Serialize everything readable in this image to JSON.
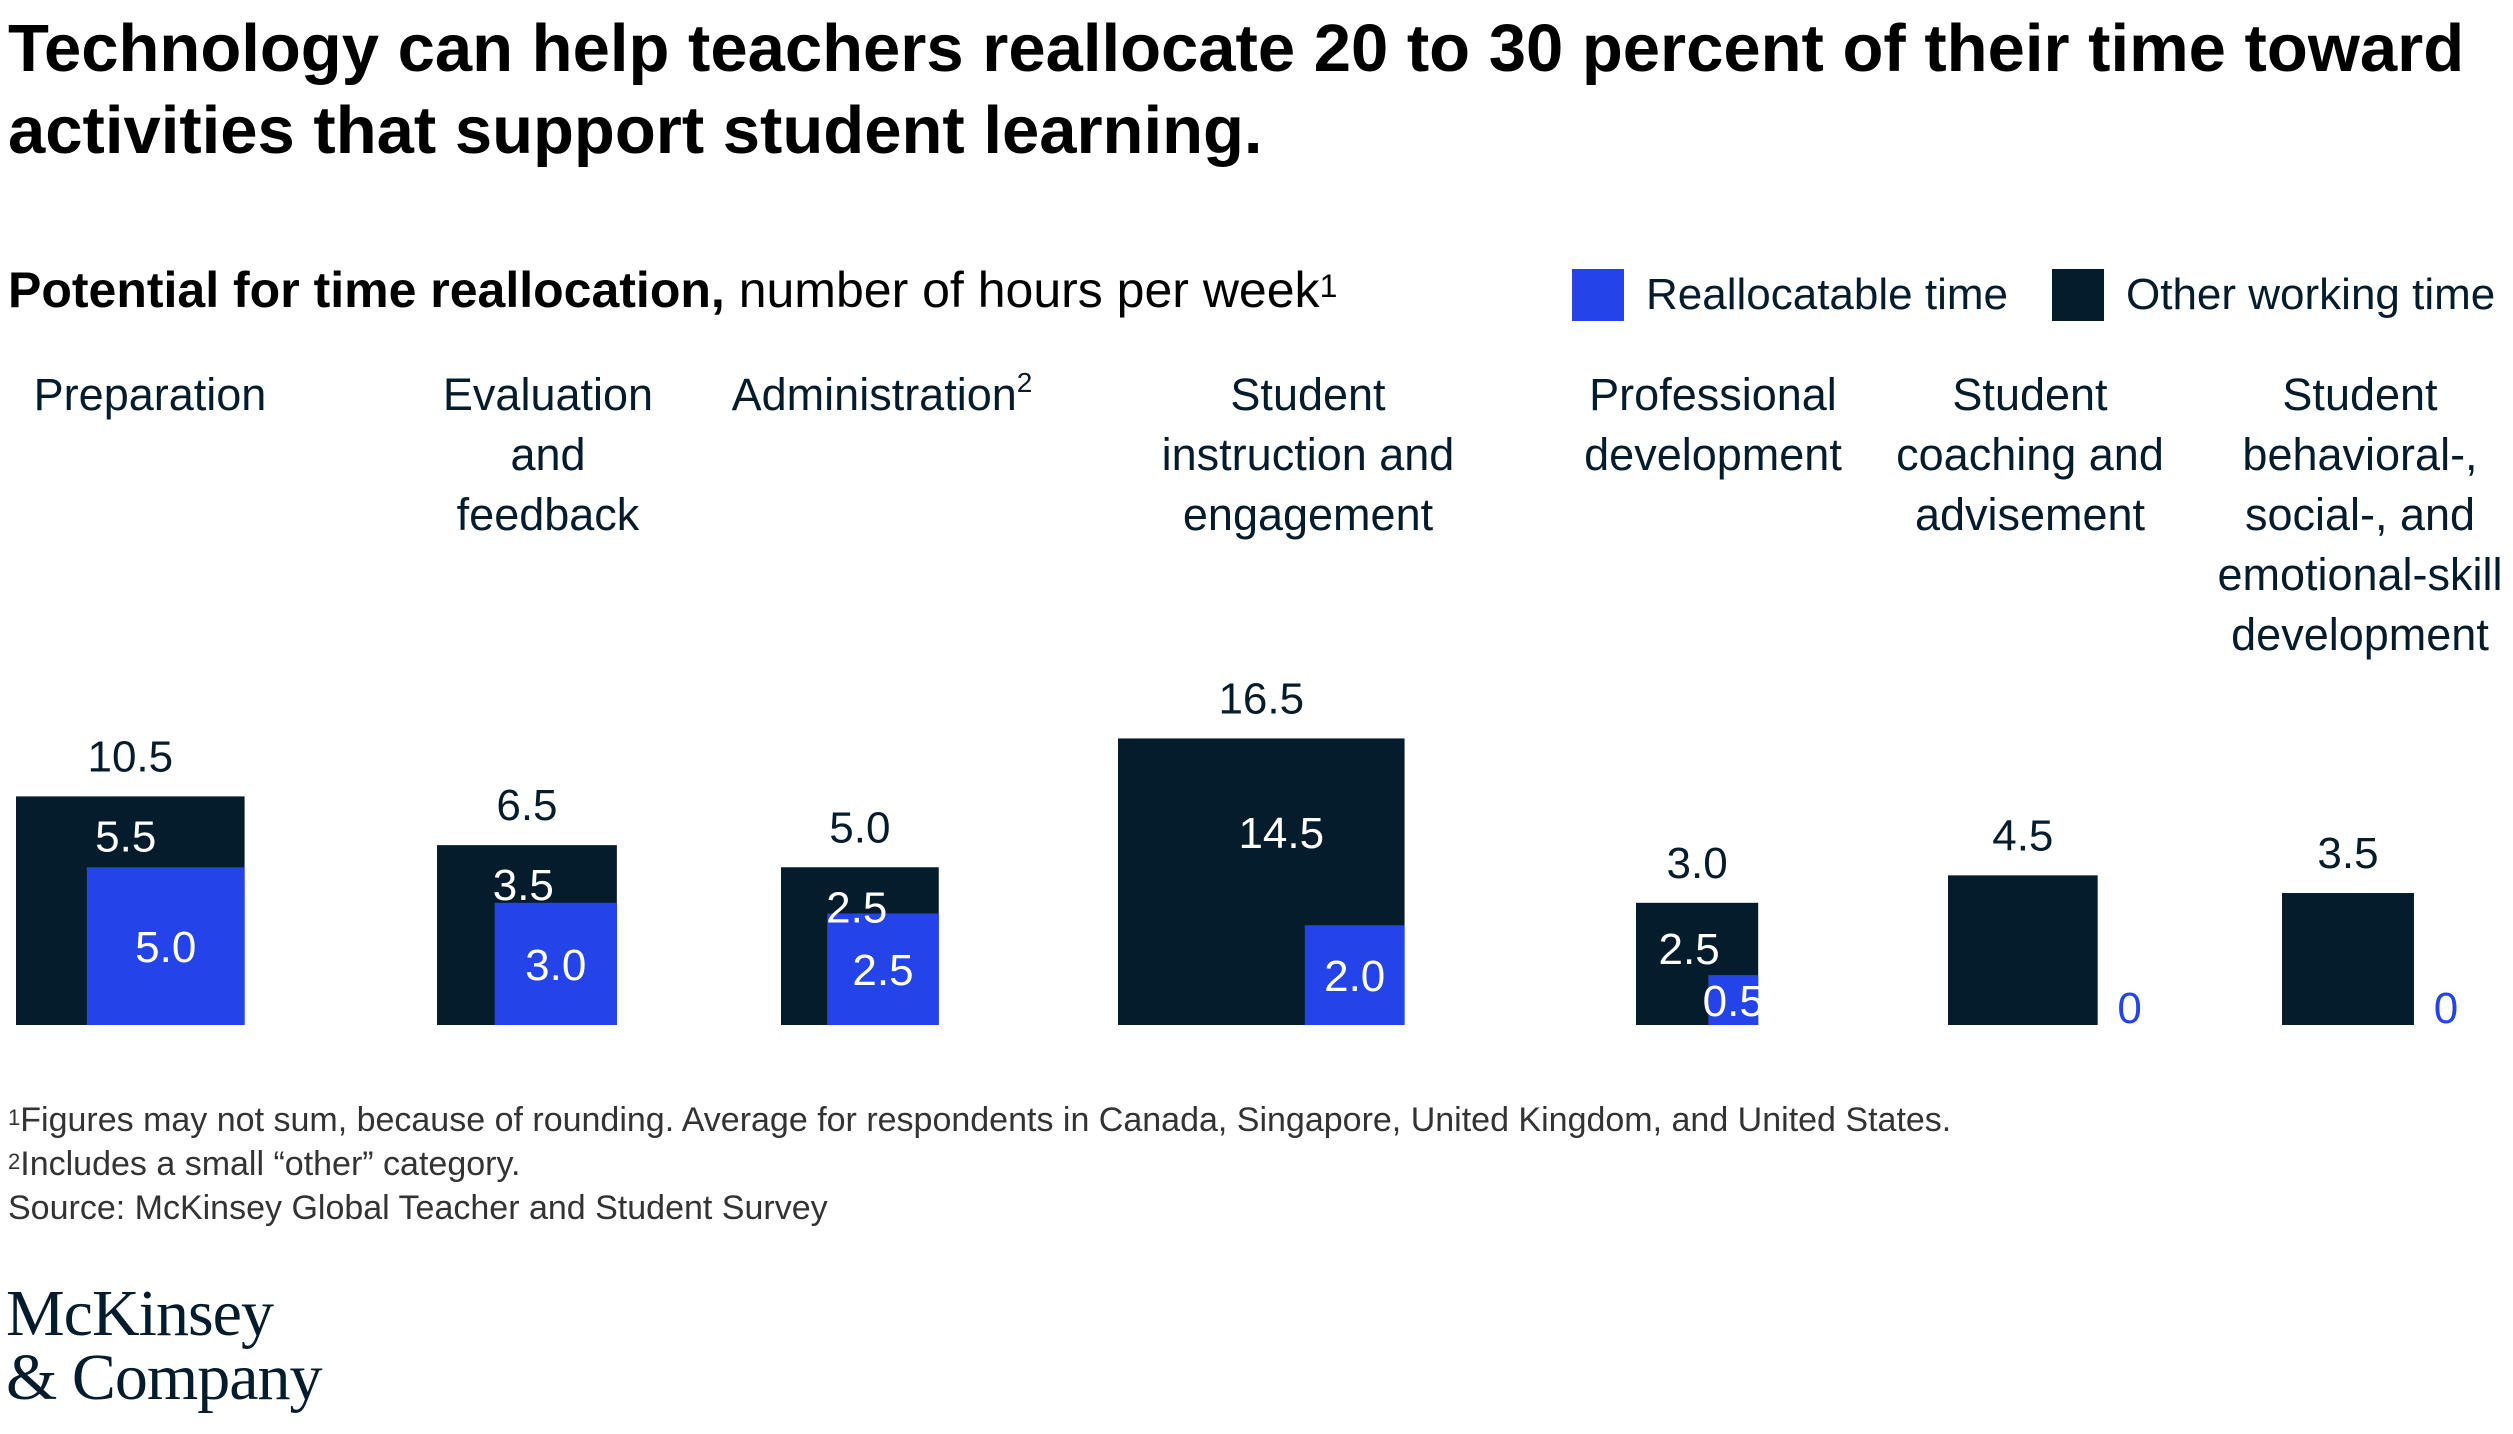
{
  "title": "Technology can help teachers reallocate 20 to 30 percent of their time toward activities that support student learning.",
  "subtitle": {
    "bold": "Potential for time reallocation,",
    "rest": " number of hours per week",
    "sup": "1"
  },
  "legend": {
    "reallocatable": "Reallocatable time",
    "other": "Other working time"
  },
  "colors": {
    "reallocatable": "#2443e8",
    "other": "#051c2c",
    "zero_label": "#2443e8"
  },
  "chart_data": {
    "type": "nested-square",
    "unit": "hours per week",
    "categories": [
      {
        "lines": [
          "Preparation"
        ],
        "total": "10.5",
        "other": "5.5",
        "reallocatable": "5.0"
      },
      {
        "lines": [
          "Evaluation",
          "and",
          "feedback"
        ],
        "total": "6.5",
        "other": "3.5",
        "reallocatable": "3.0"
      },
      {
        "lines": [
          "Administration"
        ],
        "sup": "2",
        "total": "5.0",
        "other": "2.5",
        "reallocatable": "2.5"
      },
      {
        "lines": [
          "Student",
          "instruction and",
          "engagement"
        ],
        "total": "16.5",
        "other": "14.5",
        "reallocatable": "2.0"
      },
      {
        "lines": [
          "Professional",
          "development"
        ],
        "total": "3.0",
        "other": "2.5",
        "reallocatable": "0.5"
      },
      {
        "lines": [
          "Student",
          "coaching and",
          "advisement"
        ],
        "total": "4.5",
        "other": "",
        "reallocatable": "0"
      },
      {
        "lines": [
          "Student",
          "behavioral-,",
          "social-, and",
          "emotional-skill",
          "development"
        ],
        "total": "3.5",
        "other": "",
        "reallocatable": "0"
      }
    ]
  },
  "footnotes": {
    "note1_marker": "1",
    "note1": "Figures may not sum, because of rounding. Average for respondents in Canada, Singapore, United Kingdom, and United States.",
    "note2_marker": "2",
    "note2": "Includes a small “other” category.",
    "source": "Source: McKinsey Global Teacher and Student Survey"
  },
  "logo": {
    "line1": "McKinsey",
    "line2": "& Company"
  }
}
